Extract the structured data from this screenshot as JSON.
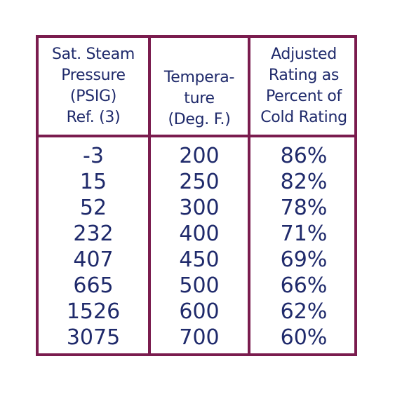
{
  "table": {
    "headers": [
      [
        "Sat. Steam",
        "Pressure",
        "(PSIG)",
        "Ref. (3)"
      ],
      [
        "Tempera-",
        "ture",
        "(Deg. F.)"
      ],
      [
        "Adjusted",
        "Rating as",
        "Percent of",
        "Cold Rating"
      ]
    ],
    "columns": [
      [
        "-3",
        "15",
        "52",
        "232",
        "407",
        "665",
        "1526",
        "3075"
      ],
      [
        "200",
        "250",
        "300",
        "400",
        "450",
        "500",
        "600",
        "700"
      ],
      [
        "86%",
        "82%",
        "78%",
        "71%",
        "69%",
        "66%",
        "62%",
        "60%"
      ]
    ]
  },
  "colors": {
    "border": "#7a1c4e",
    "text": "#1f2a6b"
  }
}
